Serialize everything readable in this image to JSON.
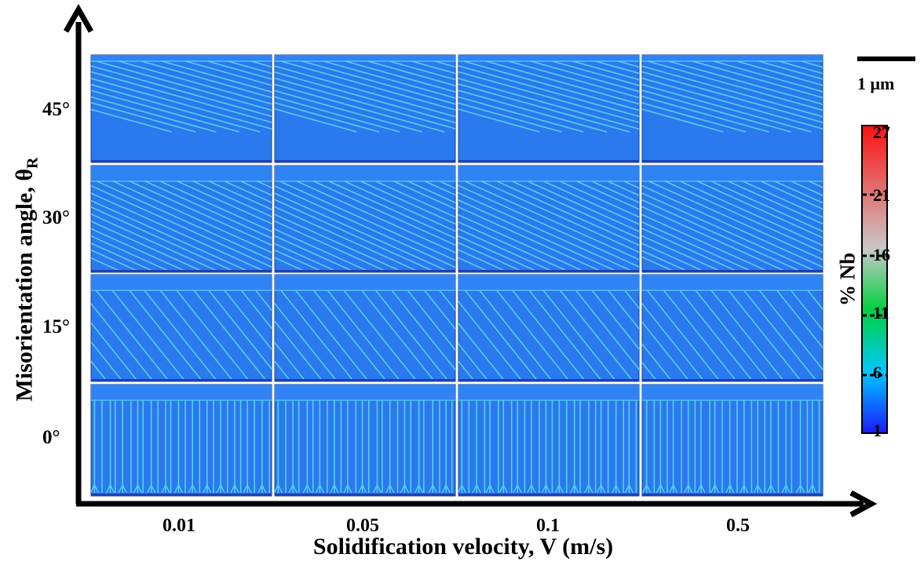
{
  "figure": {
    "x_axis": {
      "title": "Solidification velocity, V (m/s)",
      "ticks": [
        "0.01",
        "0.05",
        "0.1",
        "0.5"
      ]
    },
    "y_axis": {
      "title_main": "Misorientation angle, θ",
      "title_sub": "R",
      "ticks": [
        "45°",
        "30°",
        "15°",
        "0°"
      ]
    },
    "scale_bar": {
      "label": "1 μm"
    },
    "colorbar": {
      "title": "% Nb",
      "ticks": [
        "27",
        "21",
        "16",
        "11",
        "6",
        "1"
      ],
      "colors": [
        "#1a1aff",
        "#00c8ff",
        "#00d040",
        "#c0c0c0",
        "#ff2020"
      ]
    },
    "panel_grid": {
      "rows_misorientation_deg": [
        45,
        30,
        15,
        0
      ],
      "cols_velocity_mps": [
        0.01,
        0.05,
        0.1,
        0.5
      ],
      "background_color": "#2a79ee",
      "cell_color": "#56cfef"
    }
  }
}
